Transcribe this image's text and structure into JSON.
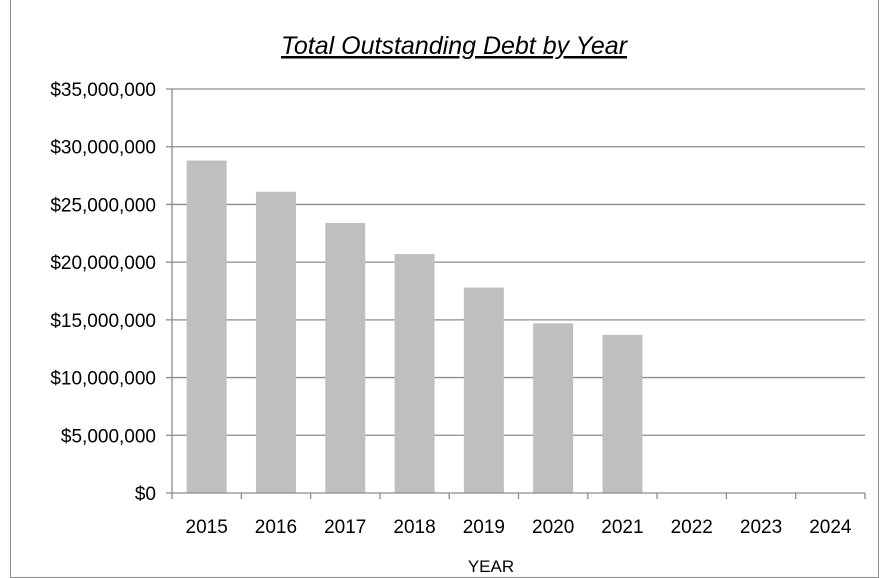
{
  "chart_data": {
    "type": "bar",
    "title": "Total Outstanding  Debt by Year",
    "xlabel": "YEAR",
    "ylabel": "",
    "categories": [
      "2015",
      "2016",
      "2017",
      "2018",
      "2019",
      "2020",
      "2021",
      "2022",
      "2023",
      "2024"
    ],
    "series": [
      {
        "values": [
          28800000,
          26100000,
          23400000,
          20700000,
          17800000,
          14700000,
          13700000,
          0,
          0,
          0
        ]
      }
    ],
    "ylim": [
      0,
      35000000
    ],
    "yticks": [
      0,
      5000000,
      10000000,
      15000000,
      20000000,
      25000000,
      30000000,
      35000000
    ],
    "ytick_labels": [
      "$0",
      "$5,000,000",
      "$10,000,000",
      "$15,000,000",
      "$20,000,000",
      "$25,000,000",
      "$30,000,000",
      "$35,000,000"
    ],
    "grid": true,
    "legend": "none",
    "colors": {
      "bar": "#bfbfbf",
      "gridline": "#8c8c8c",
      "axis": "#8c8c8c",
      "text": "#000000"
    }
  }
}
